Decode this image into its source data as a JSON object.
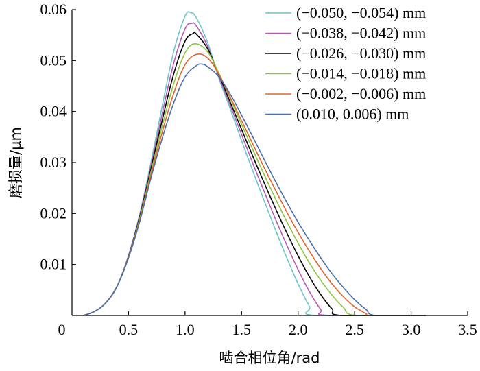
{
  "chart_data": {
    "type": "line",
    "title": "",
    "xlabel": "啮合相位角/rad",
    "ylabel": "磨损量/μm",
    "xlim": [
      0,
      3.5
    ],
    "ylim": [
      0,
      0.06
    ],
    "x_ticks": [
      "0",
      "0.5",
      "1.0",
      "1.5",
      "2.0",
      "2.5",
      "3.0",
      "3.5"
    ],
    "y_ticks": [
      "0.01",
      "0.02",
      "0.03",
      "0.04",
      "0.05",
      "0.06"
    ],
    "grid": false,
    "legend_position": "top-right",
    "series": [
      {
        "name": "(−0.050, −0.054) mm",
        "color": "#6cc5c9",
        "x": [
          0.1,
          0.2,
          0.3,
          0.4,
          0.5,
          0.6,
          0.7,
          0.8,
          0.9,
          1.0,
          1.05,
          1.1,
          1.2,
          1.3,
          1.4,
          1.5,
          1.6,
          1.7,
          1.8,
          1.9,
          2.0,
          2.1,
          2.16,
          3.13
        ],
        "y": [
          0.0,
          0.0008,
          0.0025,
          0.0058,
          0.0118,
          0.02,
          0.0302,
          0.0413,
          0.0518,
          0.0587,
          0.0594,
          0.0584,
          0.0535,
          0.0465,
          0.0405,
          0.0343,
          0.0283,
          0.0225,
          0.0168,
          0.0113,
          0.0062,
          0.0018,
          0.0,
          0.0
        ]
      },
      {
        "name": "(−0.038, −0.042) mm",
        "color": "#b55ab5",
        "x": [
          0.1,
          0.2,
          0.3,
          0.4,
          0.5,
          0.6,
          0.7,
          0.8,
          0.9,
          1.0,
          1.06,
          1.1,
          1.2,
          1.3,
          1.4,
          1.5,
          1.6,
          1.7,
          1.8,
          1.9,
          2.0,
          2.1,
          2.2,
          2.27,
          3.13
        ],
        "y": [
          0.0,
          0.0008,
          0.0025,
          0.0058,
          0.0117,
          0.0197,
          0.0295,
          0.0398,
          0.0495,
          0.0562,
          0.0573,
          0.0568,
          0.0528,
          0.0468,
          0.0412,
          0.0355,
          0.0298,
          0.0243,
          0.0189,
          0.0138,
          0.009,
          0.0047,
          0.0012,
          0.0,
          0.0
        ]
      },
      {
        "name": "(−0.026, −0.030) mm",
        "color": "#000000",
        "x": [
          0.1,
          0.2,
          0.3,
          0.4,
          0.5,
          0.6,
          0.7,
          0.8,
          0.9,
          1.0,
          1.07,
          1.1,
          1.2,
          1.3,
          1.4,
          1.5,
          1.6,
          1.7,
          1.8,
          1.9,
          2.0,
          2.1,
          2.2,
          2.3,
          2.39,
          3.13
        ],
        "y": [
          0.0,
          0.0008,
          0.0025,
          0.0058,
          0.0116,
          0.0194,
          0.0289,
          0.0385,
          0.0474,
          0.0538,
          0.0553,
          0.0552,
          0.0523,
          0.0472,
          0.0418,
          0.0365,
          0.0312,
          0.026,
          0.021,
          0.0162,
          0.0117,
          0.0076,
          0.0041,
          0.0013,
          0.0,
          0.0
        ]
      },
      {
        "name": "(−0.014, −0.018) mm",
        "color": "#8cc63f",
        "x": [
          0.1,
          0.2,
          0.3,
          0.4,
          0.5,
          0.6,
          0.7,
          0.8,
          0.9,
          1.0,
          1.09,
          1.2,
          1.3,
          1.4,
          1.5,
          1.6,
          1.7,
          1.8,
          1.9,
          2.0,
          2.1,
          2.2,
          2.3,
          2.4,
          2.52,
          3.13
        ],
        "y": [
          0.0,
          0.0008,
          0.0025,
          0.0058,
          0.0115,
          0.0191,
          0.0283,
          0.0373,
          0.0455,
          0.0515,
          0.0533,
          0.0517,
          0.0475,
          0.0425,
          0.0375,
          0.0325,
          0.0276,
          0.0229,
          0.0184,
          0.0142,
          0.0103,
          0.0069,
          0.004,
          0.0016,
          0.0,
          0.0
        ]
      },
      {
        "name": "(−0.002, −0.006) mm",
        "color": "#e2642a",
        "x": [
          0.1,
          0.2,
          0.3,
          0.4,
          0.5,
          0.6,
          0.7,
          0.8,
          0.9,
          1.0,
          1.1,
          1.2,
          1.3,
          1.4,
          1.5,
          1.6,
          1.7,
          1.8,
          1.9,
          2.0,
          2.1,
          2.2,
          2.3,
          2.4,
          2.5,
          2.6,
          2.65,
          3.13
        ],
        "y": [
          0.0,
          0.0008,
          0.0025,
          0.0058,
          0.0114,
          0.0188,
          0.0277,
          0.0361,
          0.0436,
          0.0492,
          0.0512,
          0.0505,
          0.0473,
          0.0428,
          0.0382,
          0.0336,
          0.029,
          0.0246,
          0.0203,
          0.0163,
          0.0126,
          0.0092,
          0.0062,
          0.0037,
          0.0017,
          0.0004,
          0.0,
          0.0
        ]
      },
      {
        "name": "(0.010, 0.006) mm",
        "color": "#4a6fa8",
        "x": [
          0.1,
          0.2,
          0.3,
          0.4,
          0.5,
          0.6,
          0.7,
          0.8,
          0.9,
          1.0,
          1.1,
          1.15,
          1.2,
          1.3,
          1.4,
          1.5,
          1.6,
          1.7,
          1.8,
          1.9,
          2.0,
          2.1,
          2.2,
          2.3,
          2.4,
          2.5,
          2.6,
          2.69,
          3.13
        ],
        "y": [
          0.0,
          0.0008,
          0.0025,
          0.0058,
          0.0113,
          0.0185,
          0.0271,
          0.0349,
          0.0417,
          0.0468,
          0.049,
          0.0493,
          0.0488,
          0.0468,
          0.0434,
          0.0393,
          0.035,
          0.0306,
          0.0263,
          0.0222,
          0.0183,
          0.0147,
          0.0113,
          0.0082,
          0.0055,
          0.0031,
          0.0012,
          0.0,
          0.0
        ]
      }
    ]
  }
}
